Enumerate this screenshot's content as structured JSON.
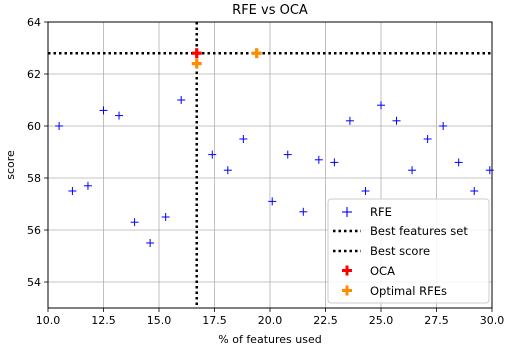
{
  "chart_data": {
    "type": "scatter",
    "title": "RFE vs OCA",
    "xlabel": "% of features used",
    "ylabel": "score",
    "xlim": [
      10.0,
      30.0
    ],
    "ylim": [
      53.0,
      64.0
    ],
    "xticks": [
      "10.0",
      "12.5",
      "15.0",
      "17.5",
      "20.0",
      "22.5",
      "25.0",
      "27.5",
      "30.0"
    ],
    "xtick_values": [
      10.0,
      12.5,
      15.0,
      17.5,
      20.0,
      22.5,
      25.0,
      27.5,
      30.0
    ],
    "yticks": [
      "54",
      "56",
      "58",
      "60",
      "62",
      "64"
    ],
    "ytick_values": [
      54,
      56,
      58,
      60,
      62,
      64
    ],
    "grid": true,
    "legend_position": "lower-right",
    "series": [
      {
        "name": "RFE",
        "marker": "+",
        "color": "#0000ff",
        "x": [
          10.5,
          11.1,
          11.8,
          12.5,
          13.2,
          13.9,
          14.6,
          15.3,
          16.0,
          16.7,
          17.4,
          18.1,
          18.8,
          19.4,
          20.1,
          20.8,
          21.5,
          22.2,
          22.9,
          23.6,
          24.3,
          25.0,
          25.7,
          26.4,
          27.1,
          27.8,
          28.5,
          29.2,
          29.9
        ],
        "y": [
          60.0,
          57.5,
          57.7,
          60.6,
          60.4,
          56.3,
          55.5,
          56.5,
          61.0,
          62.4,
          58.9,
          58.3,
          59.5,
          62.8,
          57.1,
          58.9,
          56.7,
          58.7,
          58.6,
          60.2,
          57.5,
          60.8,
          60.2,
          58.3,
          59.5,
          60.0,
          58.6,
          57.5,
          58.3
        ]
      },
      {
        "name": "OCA",
        "marker": "P",
        "color": "#ff0000",
        "x": [
          16.7
        ],
        "y": [
          62.8
        ]
      },
      {
        "name": "Optimal RFEs",
        "marker": "P",
        "color": "#ff8c00",
        "x": [
          16.7,
          19.4
        ],
        "y": [
          62.4,
          62.8
        ]
      }
    ],
    "reference_lines": [
      {
        "name": "Best features set",
        "orientation": "vertical",
        "value": 16.7,
        "style": "dotted",
        "color": "#000000"
      },
      {
        "name": "Best score",
        "orientation": "horizontal",
        "value": 62.8,
        "style": "dotted",
        "color": "#000000"
      }
    ],
    "legend": [
      "RFE",
      "Best features set",
      "Best score",
      "OCA",
      "Optimal RFEs"
    ]
  }
}
